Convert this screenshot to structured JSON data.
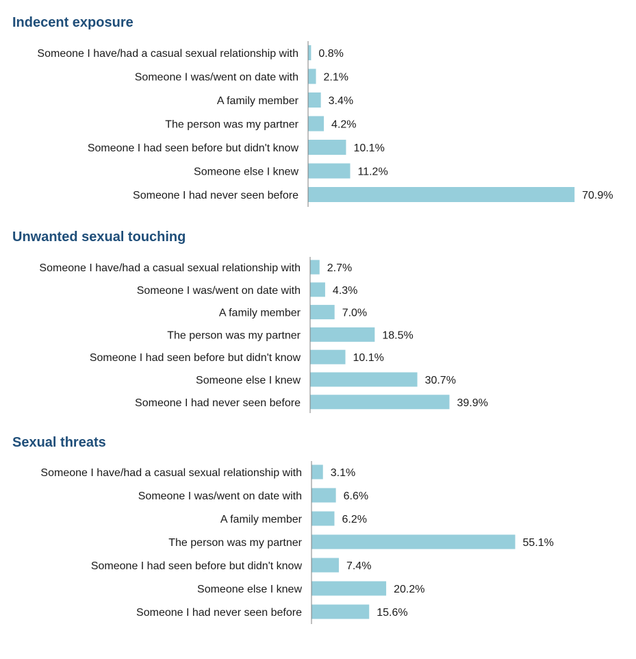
{
  "chart_data": [
    {
      "type": "bar",
      "orientation": "horizontal",
      "title": "Indecent exposure",
      "categories": [
        "Someone I have/had a casual sexual relationship with",
        "Someone I was/went on date with",
        "A family member",
        "The person was my partner",
        "Someone I had seen before but didn't know",
        "Someone else I knew",
        "Someone I had never seen before"
      ],
      "values": [
        0.8,
        2.1,
        3.4,
        4.2,
        10.1,
        11.2,
        70.9
      ],
      "value_labels": [
        "0.8%",
        "2.1%",
        "3.4%",
        "4.2%",
        "10.1%",
        "11.2%",
        "70.9%"
      ],
      "xlim": [
        0,
        100
      ],
      "bar_color": "#96cedb",
      "grid": false
    },
    {
      "type": "bar",
      "orientation": "horizontal",
      "title": "Unwanted sexual touching",
      "categories": [
        "Someone I have/had a casual sexual relationship with",
        "Someone I was/went on date with",
        "A family member",
        "The person was my partner",
        "Someone I had seen before but didn't know",
        "Someone else I knew",
        "Someone I had never seen before"
      ],
      "values": [
        2.7,
        4.3,
        7.0,
        18.5,
        10.1,
        30.7,
        39.9
      ],
      "value_labels": [
        "2.7%",
        "4.3%",
        "7.0%",
        "18.5%",
        "10.1%",
        "30.7%",
        "39.9%"
      ],
      "xlim": [
        0,
        100
      ],
      "bar_color": "#96cedb",
      "grid": false
    },
    {
      "type": "bar",
      "orientation": "horizontal",
      "title": "Sexual threats",
      "categories": [
        "Someone I have/had a casual sexual relationship with",
        "Someone I was/went on date with",
        "A family member",
        "The person was my partner",
        "Someone I had seen before but didn't know",
        "Someone else I knew",
        "Someone I had never seen before"
      ],
      "values": [
        3.1,
        6.6,
        6.2,
        55.1,
        7.4,
        20.2,
        15.6
      ],
      "value_labels": [
        "3.1%",
        "6.6%",
        "6.2%",
        "55.1%",
        "7.4%",
        "20.2%",
        "15.6%"
      ],
      "xlim": [
        0,
        100
      ],
      "bar_color": "#96cedb",
      "grid": false
    }
  ]
}
